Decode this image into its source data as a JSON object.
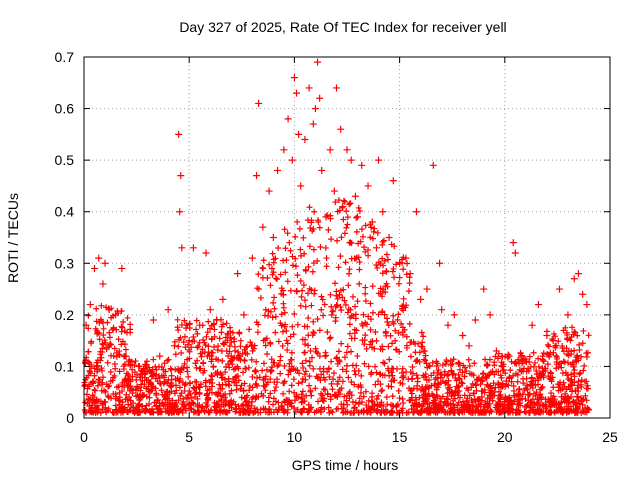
{
  "chart_data": {
    "type": "scatter",
    "title": "Day 327 of 2025, Rate Of TEC Index for receiver yell",
    "xlabel": "GPS time / hours",
    "ylabel": "ROTI / TECUs",
    "xlim": [
      0,
      25
    ],
    "ylim": [
      0,
      0.7
    ],
    "xticks": [
      0,
      5,
      10,
      15,
      20,
      25
    ],
    "yticks": [
      0,
      0.1,
      0.2,
      0.3,
      0.4,
      0.5,
      0.6,
      0.7
    ],
    "grid": true,
    "marker": "+",
    "color": "#ff0000",
    "series": [
      {
        "x": [
          0.1,
          0.3,
          0.5,
          0.7,
          0.9,
          1.0,
          1.2,
          1.5,
          1.8,
          2.0,
          2.3,
          2.6,
          3.0,
          3.3,
          3.6,
          4.0,
          4.3,
          4.5,
          4.55,
          4.6,
          4.65,
          5.0,
          5.2,
          5.5,
          5.8,
          6.0,
          6.3,
          6.6,
          7.0,
          7.3,
          7.6,
          8.0,
          8.2,
          8.3,
          8.5,
          8.8,
          9.0,
          9.2,
          9.5,
          9.7,
          9.9,
          10.0,
          10.1,
          10.2,
          10.3,
          10.5,
          10.7,
          10.9,
          11.0,
          11.1,
          11.2,
          11.3,
          11.5,
          11.7,
          11.9,
          12.0,
          12.2,
          12.3,
          12.5,
          12.7,
          12.9,
          13.0,
          13.2,
          13.5,
          13.7,
          13.9,
          14.0,
          14.2,
          14.5,
          14.7,
          15.0,
          15.3,
          15.5,
          15.8,
          16.0,
          16.3,
          16.6,
          16.9,
          17.0,
          17.3,
          17.6,
          18.0,
          18.3,
          18.6,
          19.0,
          19.3,
          19.6,
          19.9,
          20.2,
          20.4,
          20.5,
          20.8,
          21.0,
          21.3,
          21.6,
          22.0,
          22.3,
          22.6,
          23.0,
          23.3,
          23.5,
          23.7,
          23.9
        ],
        "y": [
          0.18,
          0.22,
          0.29,
          0.31,
          0.26,
          0.3,
          0.21,
          0.2,
          0.29,
          0.12,
          0.08,
          0.1,
          0.09,
          0.19,
          0.12,
          0.21,
          0.14,
          0.55,
          0.4,
          0.47,
          0.33,
          0.15,
          0.33,
          0.18,
          0.32,
          0.21,
          0.19,
          0.23,
          0.12,
          0.28,
          0.2,
          0.31,
          0.47,
          0.61,
          0.37,
          0.44,
          0.35,
          0.48,
          0.52,
          0.58,
          0.5,
          0.66,
          0.63,
          0.55,
          0.45,
          0.54,
          0.64,
          0.57,
          0.6,
          0.69,
          0.62,
          0.48,
          0.39,
          0.52,
          0.44,
          0.64,
          0.56,
          0.41,
          0.52,
          0.5,
          0.43,
          0.39,
          0.49,
          0.45,
          0.38,
          0.33,
          0.5,
          0.4,
          0.35,
          0.46,
          0.3,
          0.31,
          0.28,
          0.4,
          0.23,
          0.25,
          0.49,
          0.3,
          0.21,
          0.18,
          0.2,
          0.16,
          0.14,
          0.19,
          0.25,
          0.2,
          0.13,
          0.1,
          0.12,
          0.34,
          0.32,
          0.12,
          0.11,
          0.18,
          0.22,
          0.16,
          0.15,
          0.25,
          0.2,
          0.27,
          0.28,
          0.24,
          0.22
        ]
      }
    ]
  }
}
